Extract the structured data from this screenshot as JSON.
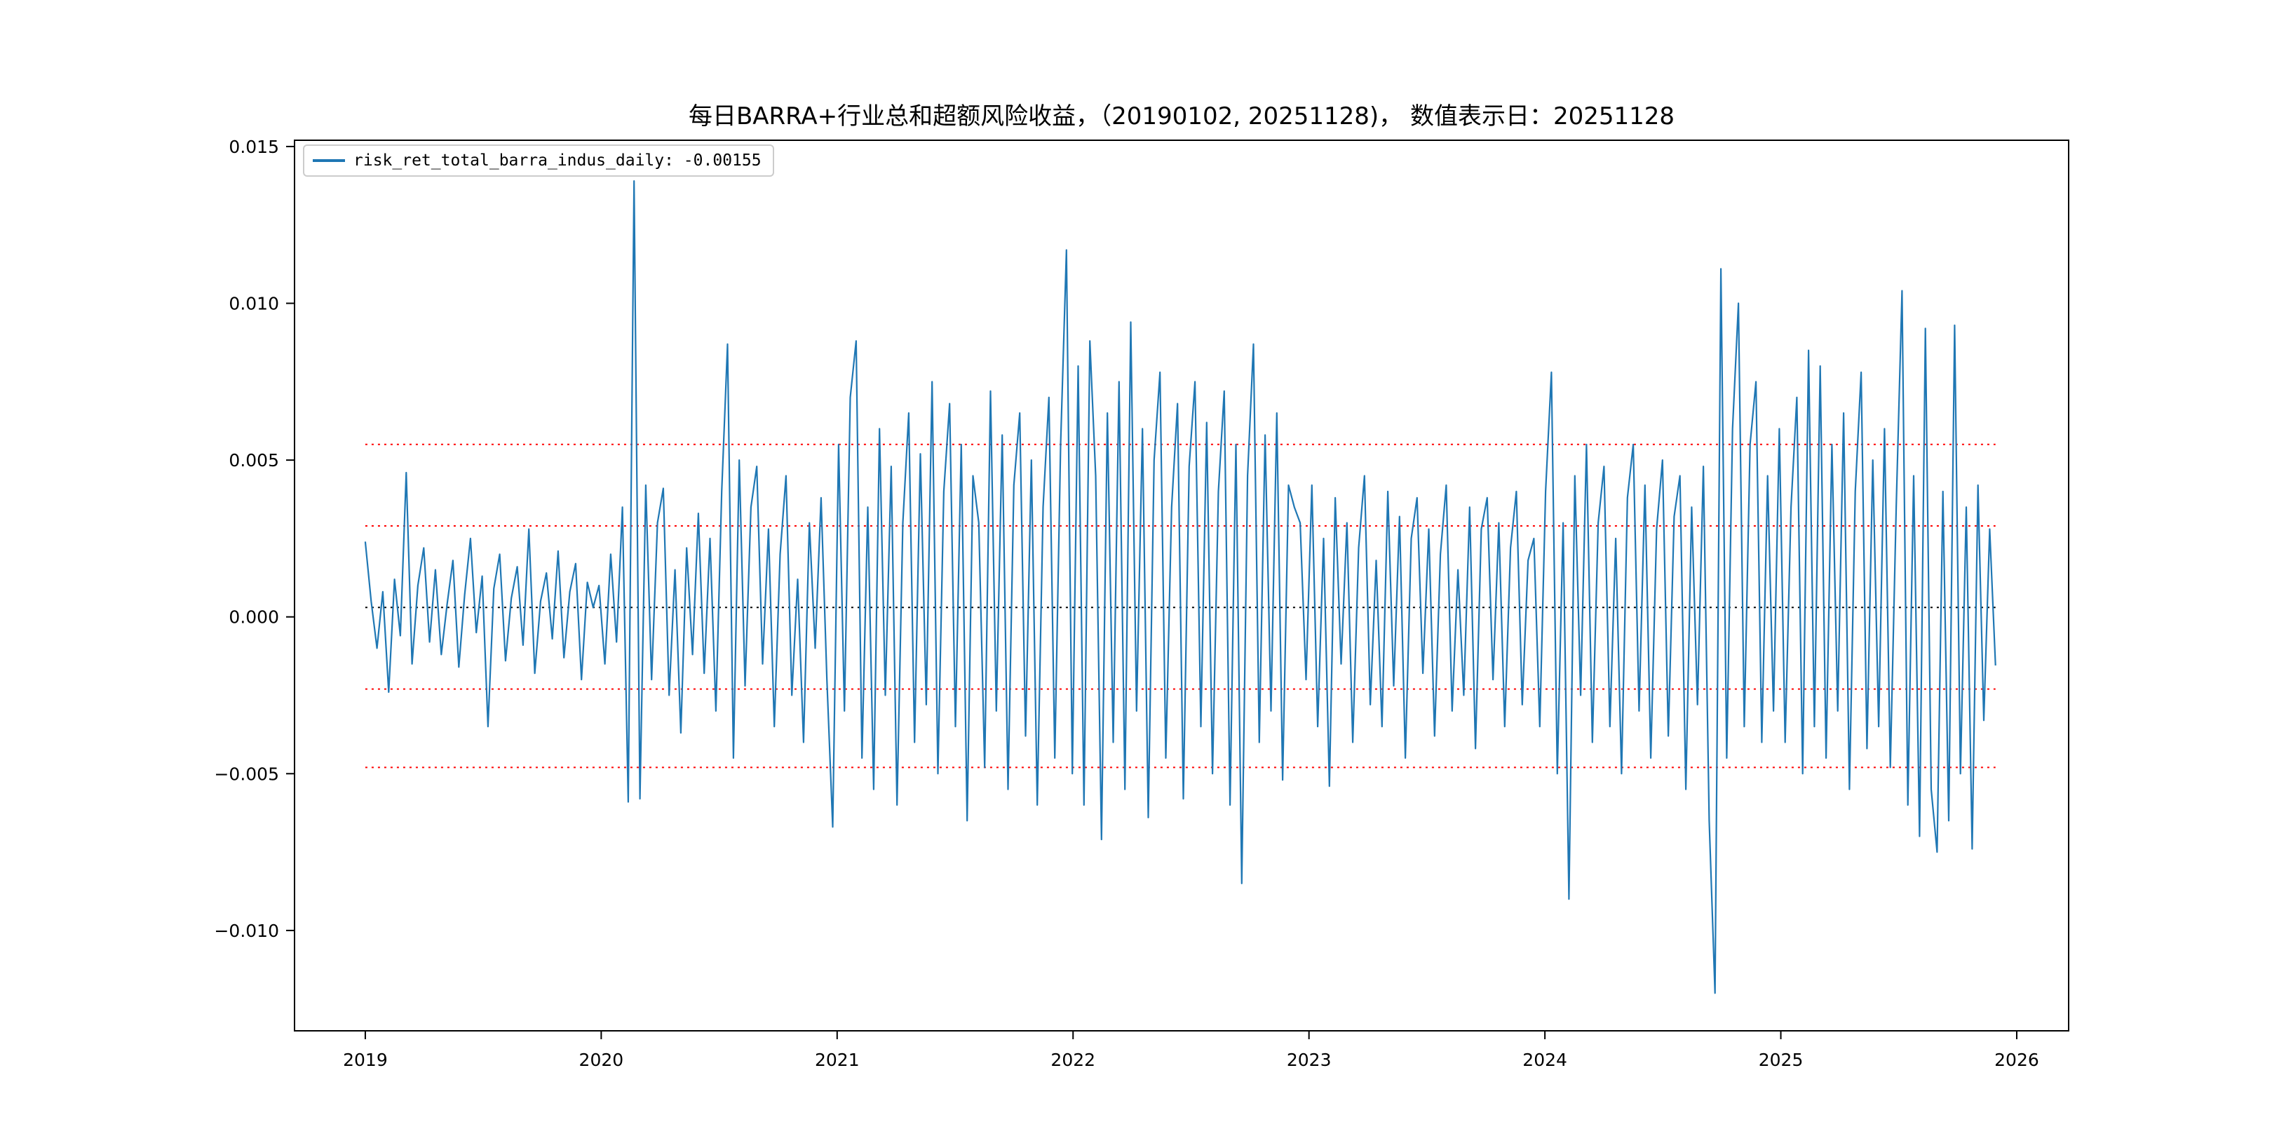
{
  "chart_data": {
    "type": "line",
    "title": "每日BARRA+行业总和超额风险收益，（20190102, 20251128)，  数值表示日：20251128",
    "legend_label": "risk_ret_total_barra_indus_daily: -0.00155",
    "series_name": "risk_ret_total_barra_indus_daily",
    "last_value": -0.00155,
    "last_date": "20251128",
    "start_date": "20190102",
    "line_color": "#1f77b4",
    "xlim": [
      2018.7,
      2026.22
    ],
    "ylim": [
      -0.0132,
      0.0152
    ],
    "ytick_values": [
      0.015,
      0.01,
      0.005,
      0.0,
      -0.005,
      -0.01
    ],
    "ytick_labels": [
      "0.015",
      "0.010",
      "0.005",
      "0.000",
      "−0.005",
      "−0.010"
    ],
    "xtick_values": [
      2019,
      2020,
      2021,
      2022,
      2023,
      2024,
      2025,
      2026
    ],
    "xtick_labels": [
      "2019",
      "2020",
      "2021",
      "2022",
      "2023",
      "2024",
      "2025",
      "2026"
    ],
    "reference_lines": [
      {
        "name": "plus-2-std",
        "value": 0.0055,
        "color": "#ff0000",
        "style": "dotted"
      },
      {
        "name": "plus-1-std",
        "value": 0.0029,
        "color": "#ff0000",
        "style": "dotted"
      },
      {
        "name": "mean",
        "value": 0.0003,
        "color": "#000000",
        "style": "dotted"
      },
      {
        "name": "minus-1-std",
        "value": -0.0023,
        "color": "#ff0000",
        "style": "dotted"
      },
      {
        "name": "minus-2-std",
        "value": -0.0048,
        "color": "#ff0000",
        "style": "dotted"
      }
    ],
    "x_start": 2019.0,
    "x_end": 2025.91,
    "values": [
      0.0024,
      0.0005,
      -0.001,
      0.0008,
      -0.0024,
      0.0012,
      -0.0006,
      0.0046,
      -0.0015,
      0.001,
      0.0022,
      -0.0008,
      0.0015,
      -0.0012,
      0.0004,
      0.0018,
      -0.0016,
      0.0007,
      0.0025,
      -0.0005,
      0.0013,
      -0.0035,
      0.0009,
      0.002,
      -0.0014,
      0.0006,
      0.0016,
      -0.0009,
      0.0028,
      -0.0018,
      0.0005,
      0.0014,
      -0.0007,
      0.0021,
      -0.0013,
      0.0008,
      0.0017,
      -0.002,
      0.0011,
      0.0003,
      0.001,
      -0.0015,
      0.002,
      -0.0008,
      0.0035,
      -0.0059,
      0.0139,
      -0.0058,
      0.0042,
      -0.002,
      0.003,
      0.0041,
      -0.0025,
      0.0015,
      -0.0037,
      0.0022,
      -0.0012,
      0.0033,
      -0.0018,
      0.0025,
      -0.003,
      0.004,
      0.0087,
      -0.0045,
      0.005,
      -0.0022,
      0.0035,
      0.0048,
      -0.0015,
      0.0028,
      -0.0035,
      0.002,
      0.0045,
      -0.0025,
      0.0012,
      -0.004,
      0.003,
      -0.001,
      0.0038,
      -0.002,
      -0.0067,
      0.0055,
      -0.003,
      0.007,
      0.0088,
      -0.0045,
      0.0035,
      -0.0055,
      0.006,
      -0.0025,
      0.0048,
      -0.006,
      0.003,
      0.0065,
      -0.004,
      0.0052,
      -0.0028,
      0.0075,
      -0.005,
      0.004,
      0.0068,
      -0.0035,
      0.0055,
      -0.0065,
      0.0045,
      0.003,
      -0.0048,
      0.0072,
      -0.003,
      0.0058,
      -0.0055,
      0.0042,
      0.0065,
      -0.0038,
      0.005,
      -0.006,
      0.0035,
      0.007,
      -0.0045,
      0.0055,
      0.0117,
      -0.005,
      0.008,
      -0.006,
      0.0088,
      0.0045,
      -0.0071,
      0.0065,
      -0.004,
      0.0075,
      -0.0055,
      0.0094,
      -0.003,
      0.006,
      -0.0064,
      0.005,
      0.0078,
      -0.0045,
      0.0035,
      0.0068,
      -0.0058,
      0.0048,
      0.0075,
      -0.0035,
      0.0062,
      -0.005,
      0.004,
      0.0072,
      -0.006,
      0.0055,
      -0.0085,
      0.0045,
      0.0087,
      -0.004,
      0.0058,
      -0.003,
      0.0065,
      -0.0052,
      0.0042,
      0.0035,
      0.003,
      -0.002,
      0.0042,
      -0.0035,
      0.0025,
      -0.0054,
      0.0038,
      -0.0015,
      0.003,
      -0.004,
      0.0022,
      0.0045,
      -0.0028,
      0.0018,
      -0.0035,
      0.004,
      -0.0022,
      0.0032,
      -0.0045,
      0.0025,
      0.0038,
      -0.0018,
      0.0028,
      -0.0038,
      0.002,
      0.0042,
      -0.003,
      0.0015,
      -0.0025,
      0.0035,
      -0.0042,
      0.0028,
      0.0038,
      -0.002,
      0.003,
      -0.0035,
      0.0022,
      0.004,
      -0.0028,
      0.0018,
      0.0025,
      -0.0035,
      0.004,
      0.0078,
      -0.005,
      0.003,
      -0.009,
      0.0045,
      -0.0025,
      0.0055,
      -0.004,
      0.003,
      0.0048,
      -0.0035,
      0.0025,
      -0.005,
      0.0038,
      0.0055,
      -0.003,
      0.0042,
      -0.0045,
      0.0028,
      0.005,
      -0.0038,
      0.0032,
      0.0045,
      -0.0055,
      0.0035,
      -0.0028,
      0.0048,
      -0.0065,
      -0.012,
      0.0111,
      -0.0045,
      0.006,
      0.01,
      -0.0035,
      0.0055,
      0.0075,
      -0.004,
      0.0045,
      -0.003,
      0.006,
      -0.004,
      0.0035,
      0.007,
      -0.005,
      0.0085,
      -0.0035,
      0.008,
      -0.0045,
      0.0055,
      -0.003,
      0.0065,
      -0.0055,
      0.004,
      0.0078,
      -0.0042,
      0.005,
      -0.0035,
      0.006,
      -0.0048,
      0.0035,
      0.0104,
      -0.006,
      0.0045,
      -0.007,
      0.0092,
      -0.0055,
      -0.0075,
      0.004,
      -0.0065,
      0.0093,
      -0.005,
      0.0035,
      -0.0074,
      0.0042,
      -0.0033,
      0.0028,
      -0.00155
    ]
  }
}
